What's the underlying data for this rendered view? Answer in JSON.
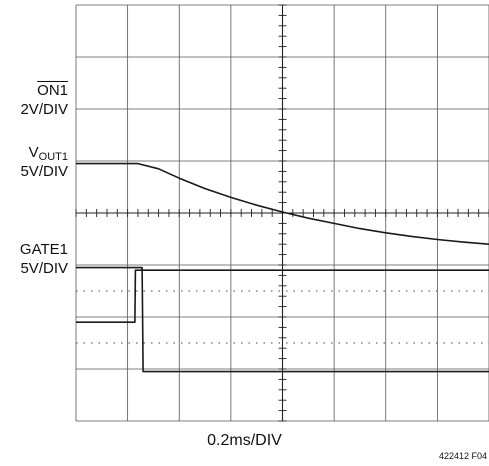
{
  "chart_data": {
    "type": "line",
    "title": "",
    "xlabel": "0.2ms/DIV",
    "ylabel": "",
    "grid": true,
    "x_divisions": 8,
    "y_divisions": 8,
    "x_unit_per_div_ms": 0.2,
    "xlim": [
      0,
      1.6
    ],
    "channels": [
      {
        "name_main": "ON",
        "name_sub": "1",
        "overline": true,
        "scale": "2V/DIV",
        "color": "#1a1a1a",
        "points_div": [
          [
            0,
            1.9
          ],
          [
            0.82,
            1.9
          ],
          [
            1.14,
            1.9
          ],
          [
            1.15,
            2.9
          ],
          [
            8,
            2.9
          ]
        ]
      },
      {
        "name_main": "V",
        "name_sub": "OUT1",
        "overline": false,
        "scale": "5V/DIV",
        "color": "#1a1a1a",
        "points_div": [
          [
            0,
            4.95
          ],
          [
            1.2,
            4.95
          ],
          [
            1.6,
            4.85
          ],
          [
            2.0,
            4.67
          ],
          [
            2.5,
            4.47
          ],
          [
            3.0,
            4.3
          ],
          [
            3.5,
            4.15
          ],
          [
            4.0,
            4.02
          ],
          [
            4.5,
            3.9
          ],
          [
            5.0,
            3.8
          ],
          [
            5.5,
            3.7
          ],
          [
            6.0,
            3.62
          ],
          [
            6.5,
            3.55
          ],
          [
            7.0,
            3.49
          ],
          [
            7.5,
            3.44
          ],
          [
            8,
            3.4
          ]
        ]
      },
      {
        "name_main": "GATE",
        "name_sub": "1",
        "overline": false,
        "scale": "5V/DIV",
        "color": "#1a1a1a",
        "points_div": [
          [
            0,
            2.95
          ],
          [
            1.2,
            2.95
          ],
          [
            1.28,
            2.95
          ],
          [
            1.29,
            2.0
          ],
          [
            1.3,
            0.95
          ],
          [
            8,
            0.95
          ]
        ]
      }
    ]
  },
  "labels": {
    "ch1_name": "ON",
    "ch1_sub": "1",
    "ch1_scale": "2V/DIV",
    "ch2_name": "V",
    "ch2_sub": "OUT1",
    "ch2_scale": "5V/DIV",
    "ch3_name": "GATE",
    "ch3_sub": "1",
    "ch3_scale": "5V/DIV",
    "time_div": "0.2ms/DIV",
    "figure_id": "422412 F04"
  }
}
